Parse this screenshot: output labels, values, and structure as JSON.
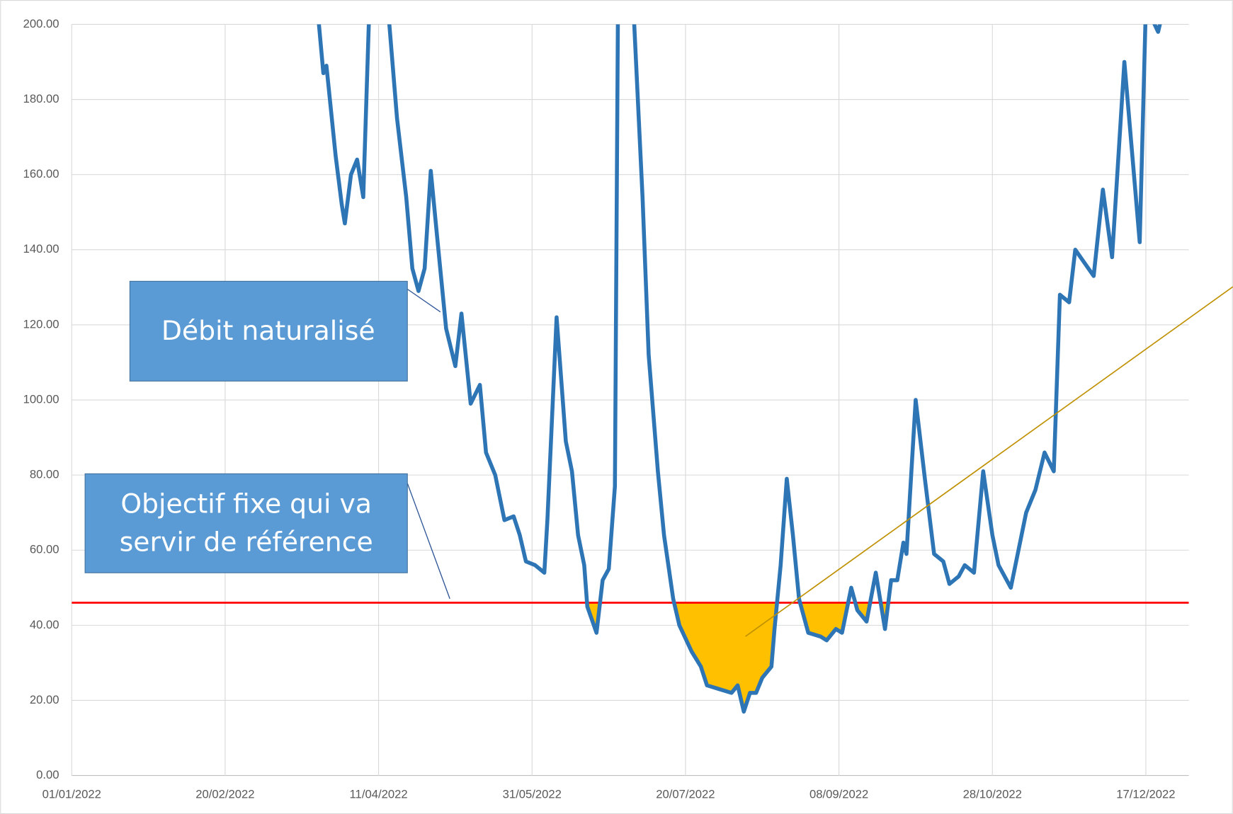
{
  "chart_data": {
    "type": "line",
    "x": [
      "22/03/2022",
      "24/03/2022",
      "25/03/2022",
      "28/03/2022",
      "30/03/2022",
      "31/03/2022",
      "02/04/2022",
      "04/04/2022",
      "06/04/2022",
      "08/04/2022",
      "14/04/2022",
      "17/04/2022",
      "20/04/2022",
      "22/04/2022",
      "24/04/2022",
      "26/04/2022",
      "28/04/2022",
      "30/04/2022",
      "03/05/2022",
      "06/05/2022",
      "08/05/2022",
      "11/05/2022",
      "14/05/2022",
      "16/05/2022",
      "19/05/2022",
      "22/05/2022",
      "25/05/2022",
      "27/05/2022",
      "29/05/2022",
      "01/06/2022",
      "04/06/2022",
      "05/06/2022",
      "08/06/2022",
      "11/06/2022",
      "13/06/2022",
      "15/06/2022",
      "17/06/2022",
      "18/06/2022",
      "21/06/2022",
      "23/06/2022",
      "25/06/2022",
      "27/06/2022",
      "28/06/2022",
      "03/07/2022",
      "06/07/2022",
      "08/07/2022",
      "11/07/2022",
      "13/07/2022",
      "16/07/2022",
      "18/07/2022",
      "22/07/2022",
      "25/07/2022",
      "27/07/2022",
      "31/07/2022",
      "04/08/2022",
      "06/08/2022",
      "08/08/2022",
      "10/08/2022",
      "12/08/2022",
      "14/08/2022",
      "17/08/2022",
      "18/08/2022",
      "20/08/2022",
      "22/08/2022",
      "24/08/2022",
      "26/08/2022",
      "29/08/2022",
      "02/09/2022",
      "04/09/2022",
      "07/09/2022",
      "09/09/2022",
      "12/09/2022",
      "14/09/2022",
      "17/09/2022",
      "20/09/2022",
      "23/09/2022",
      "25/09/2022",
      "27/09/2022",
      "29/09/2022",
      "30/09/2022",
      "03/10/2022",
      "06/10/2022",
      "09/10/2022",
      "12/10/2022",
      "14/10/2022",
      "17/10/2022",
      "19/10/2022",
      "22/10/2022",
      "25/10/2022",
      "28/10/2022",
      "30/10/2022",
      "03/11/2022",
      "05/11/2022",
      "08/11/2022",
      "11/11/2022",
      "14/11/2022",
      "17/11/2022",
      "19/11/2022",
      "22/11/2022",
      "24/11/2022",
      "30/11/2022",
      "03/12/2022",
      "06/12/2022",
      "10/12/2022",
      "15/12/2022",
      "17/12/2022",
      "21/12/2022",
      "23/12/2022"
    ],
    "series": [
      {
        "color": "#2e75b6",
        "values": [
          205,
          187,
          189,
          165,
          152,
          147,
          160,
          164,
          154,
          205,
          205,
          175,
          154,
          135,
          129,
          135,
          161,
          144,
          119,
          109,
          123,
          99,
          104,
          86,
          80,
          68,
          69,
          64,
          57,
          56,
          54,
          68,
          122,
          89,
          81,
          64,
          56,
          45,
          38,
          52,
          55,
          77,
          205,
          205,
          154,
          112,
          81,
          64,
          47,
          40,
          33,
          29,
          24,
          23,
          22,
          24,
          17,
          22,
          22,
          26,
          29,
          39,
          56,
          79,
          64,
          47,
          38,
          37,
          36,
          39,
          38,
          50,
          44,
          41,
          54,
          39,
          52,
          52,
          62,
          59,
          100,
          79,
          59,
          57,
          51,
          53,
          56,
          54,
          81,
          64,
          56,
          50,
          58,
          70,
          76,
          86,
          81,
          128,
          126,
          140,
          133,
          156,
          138,
          190,
          142,
          205,
          198,
          205
        ]
      }
    ],
    "reference": 46,
    "reference_color": "#ff0000",
    "fill_color": "#ffc000",
    "xlim": [
      "01/01/2022",
      "31/12/2022"
    ],
    "xticks": [
      "01/01/2022",
      "20/02/2022",
      "11/04/2022",
      "31/05/2022",
      "20/07/2022",
      "08/09/2022",
      "28/10/2022",
      "17/12/2022"
    ],
    "ylim": [
      0,
      200
    ],
    "yticks": [
      {
        "value": 0,
        "label": "0.00"
      },
      {
        "value": 20,
        "label": "20.00"
      },
      {
        "value": 40,
        "label": "40.00"
      },
      {
        "value": 60,
        "label": "60.00"
      },
      {
        "value": 80,
        "label": "80.00"
      },
      {
        "value": 100,
        "label": "100.00"
      },
      {
        "value": 120,
        "label": "120.00"
      },
      {
        "value": 140,
        "label": "140.00"
      },
      {
        "value": 160,
        "label": "160.00"
      },
      {
        "value": 180,
        "label": "180.00"
      },
      {
        "value": 200,
        "label": "200.00"
      }
    ],
    "grid": true,
    "annotations": [
      {
        "lines": [
          "Débit naturalisé"
        ]
      },
      {
        "lines": [
          "Objectif fixe qui va",
          "servir de référence"
        ]
      }
    ]
  }
}
